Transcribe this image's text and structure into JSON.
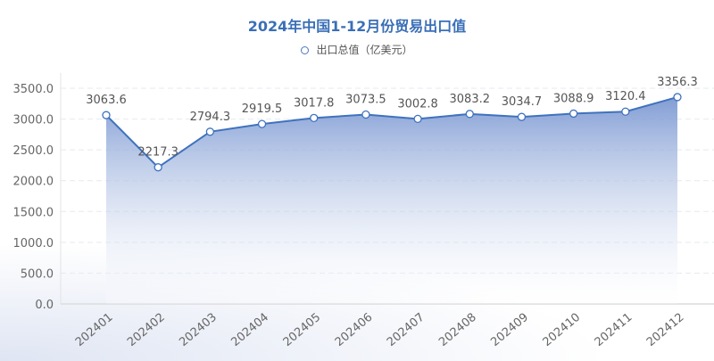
{
  "chart_data": {
    "type": "area",
    "title": "2024年中国1-12月份贸易出口值",
    "legend_position": "top",
    "categories": [
      "202401",
      "202402",
      "202403",
      "202404",
      "202405",
      "202406",
      "202407",
      "202408",
      "202409",
      "202410",
      "202411",
      "202412"
    ],
    "series": [
      {
        "name": "出口总值（亿美元）",
        "values": [
          3063.6,
          2217.3,
          2794.3,
          2919.5,
          3017.8,
          3073.5,
          3002.8,
          3083.2,
          3034.7,
          3088.9,
          3120.4,
          3356.3
        ],
        "color": "#3f72bf"
      }
    ],
    "yticks": [
      "0.0",
      "500.0",
      "1000.0",
      "1500.0",
      "2000.0",
      "2500.0",
      "3000.0",
      "3500.0"
    ],
    "ylim": [
      0,
      3500
    ],
    "grid": true,
    "data_labels": true
  }
}
